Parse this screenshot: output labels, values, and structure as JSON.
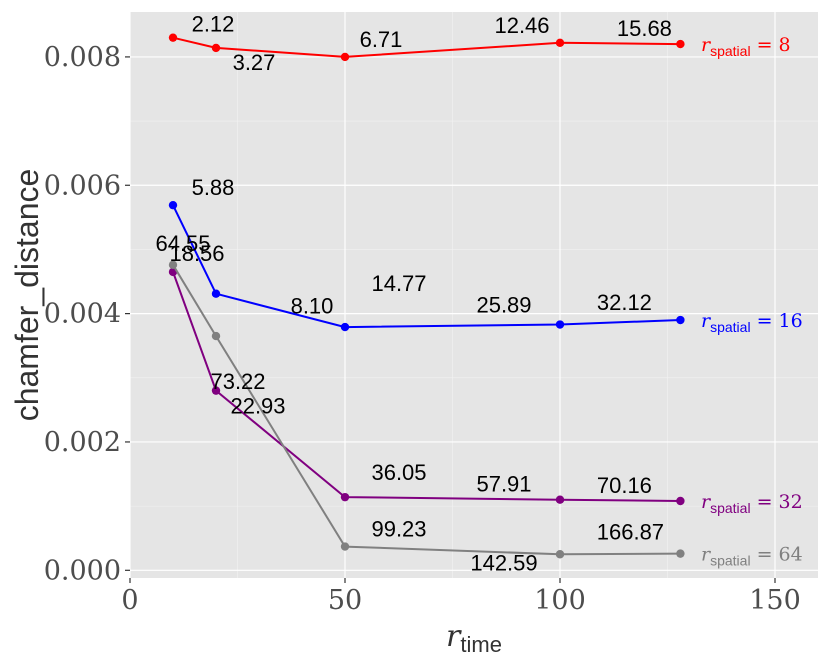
{
  "chart_data": {
    "type": "line",
    "xlabel": "r",
    "xlabel_sub": "time",
    "ylabel": "chamfer_distance",
    "xlim": [
      0,
      160
    ],
    "ylim": [
      -0.00012,
      0.0087
    ],
    "x_ticks": [
      0,
      50,
      100,
      150
    ],
    "x_tick_labels": [
      "0",
      "50",
      "100",
      "150"
    ],
    "y_ticks": [
      0.0,
      0.002,
      0.004,
      0.006,
      0.008
    ],
    "y_tick_labels": [
      "0.000",
      "0.002",
      "0.004",
      "0.006",
      "0.008"
    ],
    "grid": true,
    "legend": "direct labels at line ends",
    "series": [
      {
        "label_main": "r",
        "label_sub": "spatial",
        "label_eq": " = 8",
        "color": "#ff0000",
        "x": [
          10,
          20,
          50,
          100,
          128
        ],
        "y": [
          0.0083,
          0.00814,
          0.008,
          0.00822,
          0.0082
        ],
        "point_labels": [
          "2.12",
          "3.27",
          "6.71",
          "12.46",
          "15.68"
        ]
      },
      {
        "label_main": "r",
        "label_sub": "spatial",
        "label_eq": " = 16",
        "color": "#0000ff",
        "x": [
          10,
          20,
          50,
          100,
          128
        ],
        "y": [
          0.00569,
          0.00431,
          0.00379,
          0.00383,
          0.0039
        ],
        "point_labels": [
          "5.88",
          "8.10",
          "14.77",
          "25.89",
          "32.12"
        ]
      },
      {
        "label_main": "r",
        "label_sub": "spatial",
        "label_eq": " = 32",
        "color": "#800080",
        "x": [
          10,
          20,
          50,
          100,
          128
        ],
        "y": [
          0.00465,
          0.0028,
          0.00114,
          0.0011,
          0.00108
        ],
        "point_labels": [
          "18.56",
          "22.93",
          "36.05",
          "57.91",
          "70.16"
        ]
      },
      {
        "label_main": "r",
        "label_sub": "spatial",
        "label_eq": " = 64",
        "color": "#808080",
        "x": [
          10,
          20,
          50,
          100,
          128
        ],
        "y": [
          0.00476,
          0.00365,
          0.00037,
          0.00025,
          0.00026
        ],
        "point_labels": [
          "64.55",
          "73.22",
          "99.23",
          "142.59",
          "166.87"
        ]
      }
    ]
  }
}
